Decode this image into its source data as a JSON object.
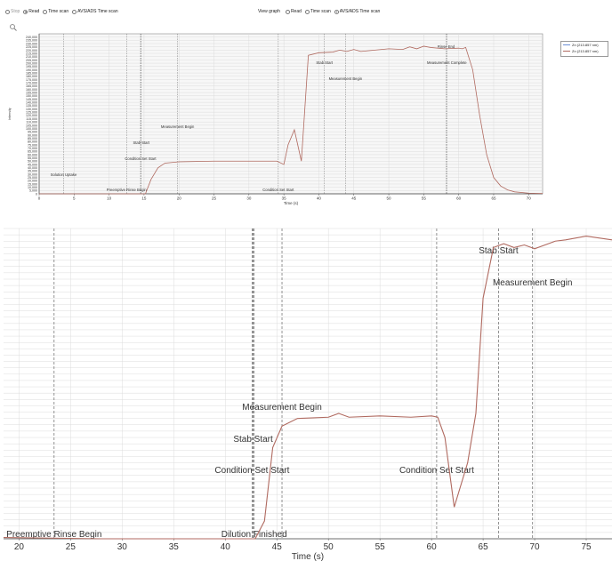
{
  "toolbar": {
    "left_options": [
      {
        "label": "Stop",
        "state": "disabled"
      },
      {
        "label": "Read",
        "state": "checked"
      },
      {
        "label": "Time scan",
        "state": "off"
      },
      {
        "label": "AVS/ADS Time scan",
        "state": "off"
      }
    ],
    "view_graph_label": "View graph",
    "view_options": [
      {
        "label": "Read",
        "state": "off"
      },
      {
        "label": "Time scan",
        "state": "off"
      },
      {
        "label": "AVS/ADS Time scan",
        "state": "checked"
      }
    ]
  },
  "icons": {
    "zoom": "magnifier-icon"
  },
  "legend": [
    {
      "label": "Zn (213.857 nm)",
      "color": "#6b8fd6"
    },
    {
      "label": "Zn (213.857 nm)",
      "color": "#b06a60"
    }
  ],
  "chart_data": [
    {
      "type": "line",
      "title": "",
      "xlabel": "Time (s)",
      "ylabel": "Intensity",
      "xlim": [
        0,
        72
      ],
      "ylim": [
        0,
        245000
      ],
      "x_ticks": [
        0,
        5,
        10,
        15,
        20,
        25,
        30,
        35,
        40,
        45,
        50,
        55,
        60,
        65,
        70
      ],
      "y_ticks": [
        0,
        5000,
        10000,
        15000,
        20000,
        25000,
        30000,
        35000,
        40000,
        45000,
        50000,
        55000,
        60000,
        65000,
        70000,
        75000,
        80000,
        85000,
        90000,
        95000,
        100000,
        105000,
        110000,
        115000,
        120000,
        125000,
        130000,
        135000,
        140000,
        145000,
        150000,
        155000,
        160000,
        165000,
        170000,
        175000,
        180000,
        185000,
        190000,
        195000,
        200000,
        205000,
        210000,
        215000,
        220000,
        225000,
        230000,
        235000,
        240000
      ],
      "y_tick_labels": [
        "0",
        "5,000",
        "10,000",
        "15,000",
        "20,000",
        "25,000",
        "30,000",
        "35,000",
        "40,000",
        "45,000",
        "50,000",
        "55,000",
        "60,000",
        "65,000",
        "70,000",
        "75,000",
        "80,000",
        "85,000",
        "90,000",
        "95,000",
        "100,000",
        "105,000",
        "110,000",
        "115,000",
        "120,000",
        "125,000",
        "130,000",
        "135,000",
        "140,000",
        "145,000",
        "150,000",
        "155,000",
        "160,000",
        "165,000",
        "170,000",
        "175,000",
        "180,000",
        "185,000",
        "190,000",
        "195,000",
        "200,000",
        "205,000",
        "210,000",
        "215,000",
        "220,000",
        "225,000",
        "230,000",
        "235,000",
        "240,000"
      ],
      "grid": true,
      "series": [
        {
          "name": "Zn (213.857 nm)",
          "color": "#b06a60",
          "x": [
            0,
            15.2,
            16,
            17,
            18,
            20,
            25,
            30,
            34,
            35,
            35.6,
            36.5,
            37.5,
            38.5,
            40,
            42,
            43,
            44,
            45,
            46,
            47,
            48,
            50,
            52,
            53,
            54,
            55,
            56,
            58,
            60,
            60.5,
            61,
            62,
            63,
            64,
            65,
            66,
            67,
            68,
            70,
            72
          ],
          "y": [
            0,
            0,
            22000,
            40000,
            47000,
            49000,
            50000,
            50000,
            50000,
            45000,
            75000,
            98000,
            50000,
            212000,
            216000,
            217000,
            220000,
            218000,
            221000,
            218000,
            219000,
            220000,
            222000,
            221000,
            225000,
            222000,
            226000,
            224000,
            222000,
            223000,
            222000,
            224000,
            190000,
            120000,
            60000,
            25000,
            12000,
            6000,
            3000,
            1000,
            500
          ]
        }
      ],
      "markers": [
        {
          "x": 3.5,
          "label": "Solution Uptake"
        },
        {
          "x": 12.5,
          "label": "Preemptive Rinse Begin"
        },
        {
          "x": 14.5,
          "label": "Condition Set Start"
        },
        {
          "x": 14.6,
          "label": "Stab Start"
        },
        {
          "x": 19.8,
          "label": "Measurement Begin"
        },
        {
          "x": 34.2,
          "label": "Condition Set Start"
        },
        {
          "x": 40.8,
          "label": "Stab Start"
        },
        {
          "x": 43.8,
          "label": "Measurement Begin"
        },
        {
          "x": 58.2,
          "label": "Rinse End"
        },
        {
          "x": 58.3,
          "label": "Measurement Complete"
        }
      ]
    },
    {
      "type": "line",
      "title": "",
      "xlabel": "Time (s)",
      "ylabel": "",
      "xlim": [
        18.5,
        77.5
      ],
      "ylim": [
        0,
        245000
      ],
      "x_ticks": [
        20,
        25,
        30,
        35,
        40,
        45,
        50,
        55,
        60,
        65,
        70,
        75
      ],
      "grid": true,
      "series": [
        {
          "name": "Zn (213.857 nm)",
          "color": "#b06a60",
          "x": [
            18.5,
            28,
            42.9,
            43.8,
            44.6,
            45.5,
            47,
            50,
            51,
            52,
            55,
            58,
            60,
            60.6,
            61.3,
            62.2,
            63.5,
            64.3,
            65,
            66,
            67,
            68,
            69,
            70,
            72,
            73,
            75,
            77.5
          ],
          "y": [
            1000,
            0,
            0,
            14000,
            72000,
            89000,
            95000,
            96000,
            99000,
            96000,
            97000,
            96000,
            97000,
            96000,
            80000,
            25000,
            60000,
            99000,
            190000,
            230000,
            233000,
            230000,
            232000,
            229000,
            235000,
            236000,
            239000,
            236000
          ]
        }
      ],
      "markers": [
        {
          "x": 23.4,
          "label": "Preemptive Rinse Begin"
        },
        {
          "x": 42.6,
          "label": "Condition Set Start"
        },
        {
          "x": 42.7,
          "label": "Stab Start"
        },
        {
          "x": 42.8,
          "label": "Dilution Finished"
        },
        {
          "x": 45.5,
          "label": "Measurement Begin"
        },
        {
          "x": 60.5,
          "label": "Condition Set Start"
        },
        {
          "x": 66.5,
          "label": "Stab Start"
        },
        {
          "x": 69.8,
          "label": "Measurement Begin"
        }
      ]
    }
  ]
}
